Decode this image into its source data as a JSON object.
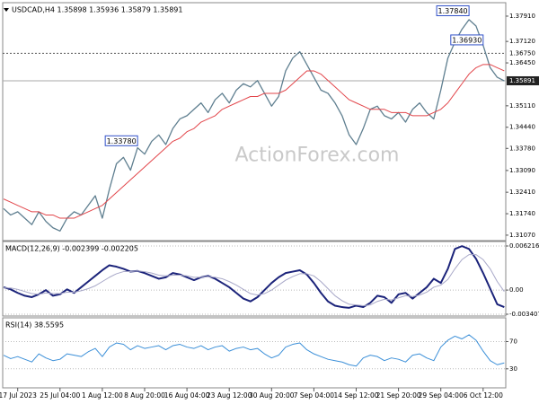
{
  "chart_data": [
    {
      "type": "line",
      "title": "USDCAD,H4  1.35898 1.35936 1.35879 1.35891",
      "watermark": "ActionForex.com",
      "ylim": [
        1.309,
        1.3833
      ],
      "yticks": [
        {
          "value": 1.3791,
          "label": "1.37910"
        },
        {
          "value": 1.3712,
          "label": "1.37120"
        },
        {
          "value": 1.3645,
          "label": "1.36450"
        },
        {
          "value": 1.3511,
          "label": "1.35110"
        },
        {
          "value": 1.3444,
          "label": "1.34440"
        },
        {
          "value": 1.3378,
          "label": "1.33780"
        },
        {
          "value": 1.3309,
          "label": "1.33090"
        },
        {
          "value": 1.3241,
          "label": "1.32410"
        },
        {
          "value": 1.3174,
          "label": "1.31740"
        },
        {
          "value": 1.3107,
          "label": "1.31070"
        }
      ],
      "grid": false,
      "levels": [
        {
          "value": 1.3675,
          "label": "1.36750",
          "style": "dashed"
        },
        {
          "value": 1.35891,
          "label": "1.35891",
          "style": "solid"
        }
      ],
      "annotations": [
        {
          "value": 1.3693,
          "label": "1.36930"
        },
        {
          "value": 1.3378,
          "label": "1.33780"
        },
        {
          "value": 1.3784,
          "label": "1.37840"
        }
      ],
      "series": [
        {
          "color": "#5f7f90",
          "width": 1.3,
          "values": [
            1.319,
            1.317,
            1.318,
            1.316,
            1.314,
            1.318,
            1.315,
            1.313,
            1.312,
            1.316,
            1.318,
            1.317,
            1.32,
            1.323,
            1.316,
            1.325,
            1.333,
            1.335,
            1.331,
            1.338,
            1.336,
            1.34,
            1.342,
            1.339,
            1.344,
            1.347,
            1.348,
            1.35,
            1.352,
            1.349,
            1.353,
            1.355,
            1.352,
            1.356,
            1.358,
            1.357,
            1.359,
            1.355,
            1.351,
            1.354,
            1.362,
            1.366,
            1.368,
            1.364,
            1.36,
            1.356,
            1.355,
            1.352,
            1.348,
            1.342,
            1.339,
            1.344,
            1.35,
            1.351,
            1.348,
            1.347,
            1.349,
            1.346,
            1.35,
            1.352,
            1.349,
            1.347,
            1.356,
            1.366,
            1.371,
            1.375,
            1.378,
            1.376,
            1.37,
            1.363,
            1.36,
            1.3589
          ]
        },
        {
          "color": "#e2454a",
          "width": 1,
          "values": [
            1.322,
            1.321,
            1.32,
            1.319,
            1.318,
            1.318,
            1.317,
            1.317,
            1.316,
            1.316,
            1.316,
            1.317,
            1.318,
            1.319,
            1.32,
            1.322,
            1.324,
            1.326,
            1.328,
            1.33,
            1.332,
            1.334,
            1.336,
            1.338,
            1.34,
            1.341,
            1.343,
            1.344,
            1.346,
            1.347,
            1.348,
            1.35,
            1.351,
            1.352,
            1.353,
            1.354,
            1.354,
            1.355,
            1.355,
            1.355,
            1.356,
            1.358,
            1.36,
            1.362,
            1.362,
            1.361,
            1.359,
            1.357,
            1.355,
            1.353,
            1.352,
            1.351,
            1.35,
            1.35,
            1.35,
            1.349,
            1.349,
            1.349,
            1.348,
            1.348,
            1.348,
            1.349,
            1.35,
            1.352,
            1.355,
            1.358,
            1.361,
            1.363,
            1.364,
            1.364,
            1.363,
            1.362
          ]
        }
      ]
    },
    {
      "type": "line",
      "title": "MACD(12,26,9) -0.002399 -0.002205",
      "ylim": [
        -0.00366,
        0.00685
      ],
      "yticks": [
        0.006216,
        {
          "value": 0,
          "label": "0.00"
        },
        -0.003407
      ],
      "grid": true,
      "series": [
        {
          "color": "#1b237a",
          "width": 2,
          "values": [
            0.0004,
            0.0001,
            -0.0004,
            -0.0008,
            -0.001,
            -0.0006,
            0,
            -0.0008,
            -0.0006,
            0.0001,
            -0.0004,
            0.0004,
            0.0012,
            0.002,
            0.0028,
            0.0035,
            0.0033,
            0.003,
            0.0026,
            0.0027,
            0.0024,
            0.002,
            0.0016,
            0.0018,
            0.0024,
            0.0022,
            0.0018,
            0.0014,
            0.0018,
            0.002,
            0.0016,
            0.001,
            0.0004,
            -0.0004,
            -0.0012,
            -0.0016,
            -0.001,
            0,
            0.001,
            0.0018,
            0.0024,
            0.0026,
            0.0028,
            0.0022,
            0.001,
            -0.0004,
            -0.0016,
            -0.0022,
            -0.0024,
            -0.0025,
            -0.0022,
            -0.0024,
            -0.0018,
            -0.0008,
            -0.001,
            -0.0018,
            -0.0006,
            -0.0004,
            -0.0012,
            -0.0004,
            0.0004,
            0.0016,
            0.001,
            0.003,
            0.0058,
            0.0062,
            0.0058,
            0.0044,
            0.0024,
            0.0002,
            -0.002,
            -0.0024
          ]
        },
        {
          "color": "#a8a8c8",
          "width": 1,
          "values": [
            0.0003,
            0.0003,
            0.0001,
            -0.0002,
            -0.0005,
            -0.0006,
            -0.0004,
            -0.0005,
            -0.0005,
            -0.0003,
            -0.0003,
            -0.0001,
            0.0002,
            0.0006,
            0.0012,
            0.0018,
            0.0023,
            0.0026,
            0.0026,
            0.0027,
            0.0026,
            0.0024,
            0.0021,
            0.002,
            0.0021,
            0.0021,
            0.002,
            0.0018,
            0.0018,
            0.0019,
            0.0018,
            0.0016,
            0.0012,
            0.0007,
            0.0001,
            -0.0005,
            -0.0007,
            -0.0005,
            0,
            0.0007,
            0.0014,
            0.0019,
            0.0023,
            0.0023,
            0.002,
            0.0012,
            0.0002,
            -0.0008,
            -0.0015,
            -0.002,
            -0.0021,
            -0.0022,
            -0.0021,
            -0.0016,
            -0.0013,
            -0.0014,
            -0.0011,
            -0.0008,
            -0.0009,
            -0.0007,
            -0.0003,
            0.0004,
            0.0007,
            0.0015,
            0.003,
            0.0043,
            0.005,
            0.005,
            0.0043,
            0.003,
            0.0012,
            -0.0002
          ]
        }
      ]
    },
    {
      "type": "line",
      "title": "RSI(14) 38.5595",
      "ylim": [
        2,
        105
      ],
      "yticks": [
        70,
        30
      ],
      "grid": true,
      "categories": [
        null,
        null,
        "17 Jul 2023",
        null,
        null,
        null,
        null,
        null,
        "25 Jul 04:00",
        null,
        null,
        null,
        null,
        null,
        "1 Aug 12:00",
        null,
        null,
        null,
        null,
        null,
        "8 Aug 20:00",
        null,
        null,
        null,
        null,
        null,
        "16 Aug 04:00",
        null,
        null,
        null,
        null,
        null,
        "23 Aug 12:00",
        null,
        null,
        null,
        null,
        null,
        "30 Aug 20:00",
        null,
        null,
        null,
        null,
        null,
        "7 Sep 04:00",
        null,
        null,
        null,
        null,
        null,
        "14 Sep 12:00",
        null,
        null,
        null,
        null,
        null,
        "21 Sep 20:00",
        null,
        null,
        null,
        null,
        null,
        "29 Sep 04:00",
        null,
        null,
        null,
        null,
        null,
        "6 Oct 12:00",
        null,
        null,
        null
      ],
      "series": [
        {
          "color": "#3b8fd8",
          "width": 1,
          "values": [
            50,
            45,
            48,
            44,
            40,
            52,
            46,
            42,
            44,
            52,
            50,
            48,
            55,
            60,
            48,
            62,
            68,
            66,
            58,
            64,
            60,
            62,
            64,
            58,
            64,
            66,
            62,
            60,
            64,
            58,
            62,
            64,
            56,
            60,
            62,
            58,
            60,
            52,
            46,
            50,
            62,
            66,
            68,
            58,
            52,
            48,
            44,
            42,
            40,
            36,
            34,
            46,
            50,
            48,
            42,
            46,
            44,
            40,
            50,
            52,
            46,
            42,
            62,
            72,
            78,
            74,
            80,
            72,
            56,
            42,
            36,
            38.6
          ]
        }
      ]
    }
  ]
}
